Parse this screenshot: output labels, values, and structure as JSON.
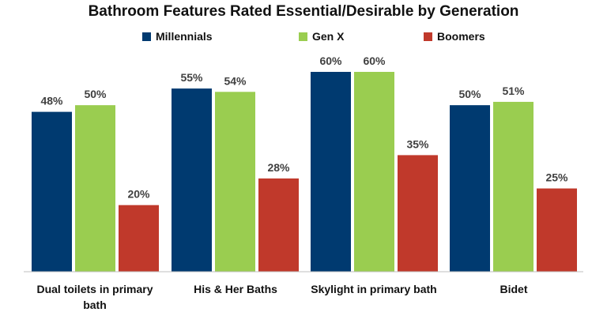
{
  "chart_data": {
    "type": "bar",
    "title": "Bathroom Features Rated Essential/Desirable by Generation",
    "categories": [
      "Dual toilets in primary bath",
      "His & Her Baths",
      "Skylight in primary bath",
      "Bidet"
    ],
    "series": [
      {
        "name": "Millennials",
        "color": "#003A70",
        "values": [
          48,
          55,
          60,
          50
        ],
        "labels": [
          "48%",
          "55%",
          "60%",
          "50%"
        ]
      },
      {
        "name": "Gen X",
        "color": "#9ACD50",
        "values": [
          50,
          54,
          60,
          51
        ],
        "labels": [
          "50%",
          "54%",
          "60%",
          "51%"
        ]
      },
      {
        "name": "Boomers",
        "color": "#C0392B",
        "values": [
          20,
          28,
          35,
          25
        ],
        "labels": [
          "20%",
          "28%",
          "35%",
          "25%"
        ]
      }
    ],
    "ylim": [
      0,
      60
    ],
    "grid": false,
    "legend_position": "top"
  }
}
